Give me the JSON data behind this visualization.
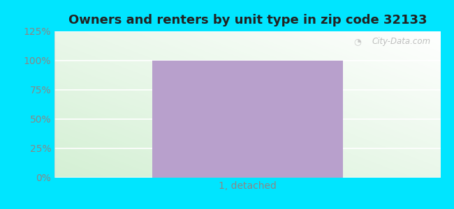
{
  "title": "Owners and renters by unit type in zip code 32133",
  "categories": [
    "1, detached"
  ],
  "values": [
    100
  ],
  "bar_color": "#b8a0cc",
  "bar_width": 0.45,
  "ylim": [
    0,
    125
  ],
  "yticks": [
    0,
    25,
    50,
    75,
    100,
    125
  ],
  "yticklabels": [
    "0%",
    "25%",
    "50%",
    "75%",
    "100%",
    "125%"
  ],
  "title_fontsize": 13,
  "tick_fontsize": 10,
  "xlabel_fontsize": 10,
  "outer_bg_color": "#00e5ff",
  "plot_bg_green": "#d4f0d4",
  "plot_bg_white": "#ffffff",
  "watermark_text": "City-Data.com",
  "grid_color": "#ffffff",
  "grid_linewidth": 1.2,
  "tick_color": "#888888"
}
